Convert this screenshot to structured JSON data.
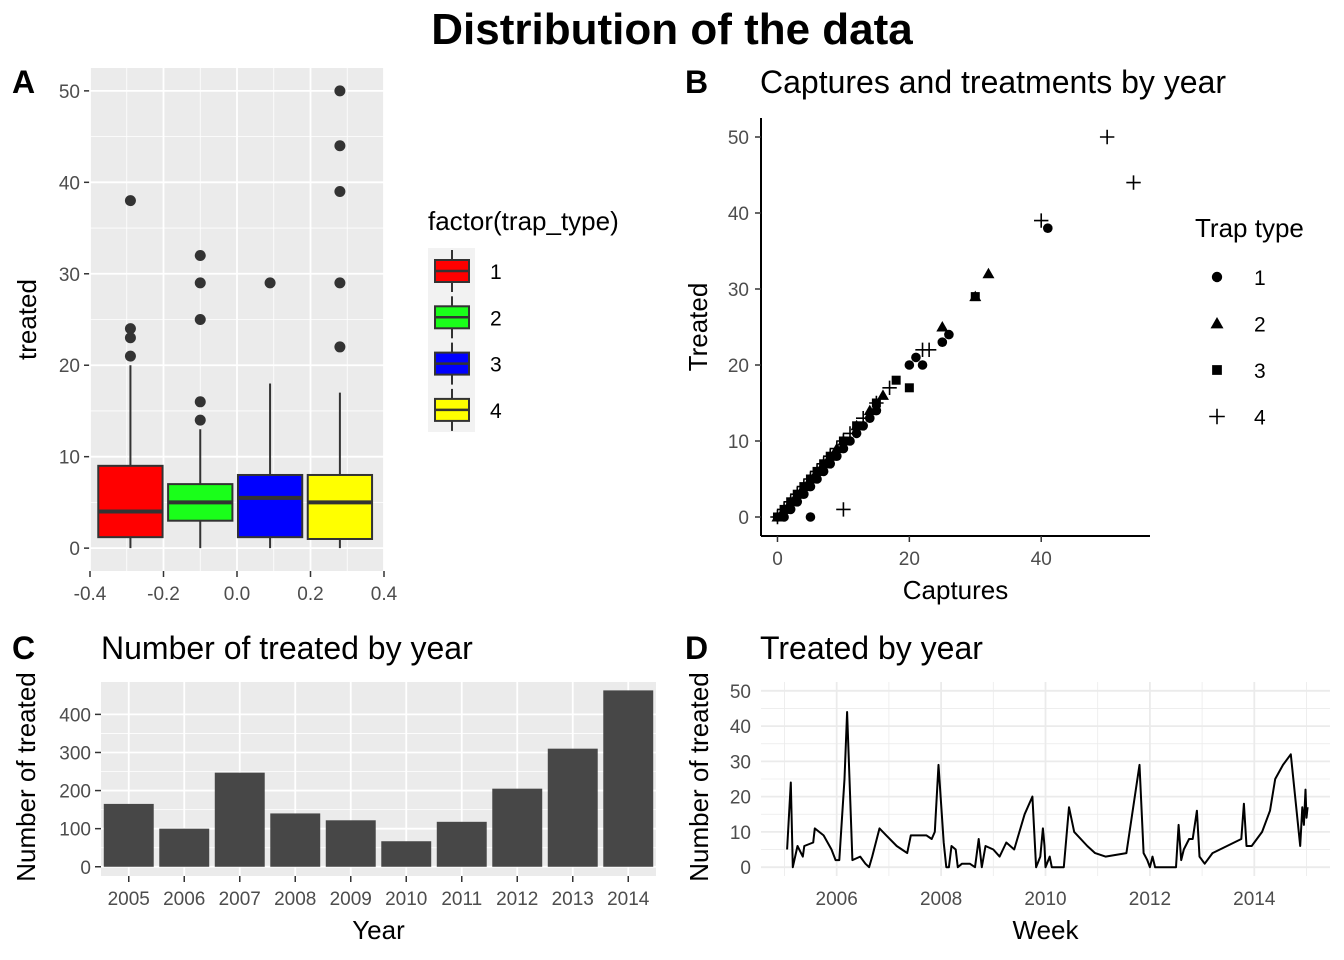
{
  "title": "Distribution of the data",
  "colors": {
    "panel_bg": "#EBEBEB",
    "grid": "#FFFFFF",
    "grid_light": "#EBEBEB",
    "bar": "#474747",
    "box_fill": [
      "#FF0000",
      "#1AFF1A",
      "#0000FF",
      "#FFFF00"
    ]
  },
  "chart_data": [
    {
      "id": "A",
      "type": "box",
      "tag": "A",
      "title": "",
      "xlabel": "",
      "ylabel": "treated",
      "xlim": [
        -0.4,
        0.4
      ],
      "ylim": [
        0,
        50
      ],
      "x_ticks": [
        -0.4,
        -0.2,
        0.0,
        0.2,
        0.4
      ],
      "x_tick_labels": [
        "-0.4",
        "-0.2",
        "0.0",
        "0.2",
        "0.4"
      ],
      "y_ticks": [
        0,
        10,
        20,
        30,
        40,
        50
      ],
      "y_tick_labels": [
        "0",
        "10",
        "20",
        "30",
        "40",
        "50"
      ],
      "legend": {
        "title": "factor(trap_type)",
        "labels": [
          "1",
          "2",
          "3",
          "4"
        ],
        "position": "right"
      },
      "boxes": [
        {
          "group": "1",
          "x_min": -0.3775,
          "x_max": -0.2025,
          "q1": 1.2,
          "median": 4,
          "q3": 9,
          "whisker_low": 0,
          "whisker_high": 20,
          "outliers": [
            21,
            23,
            24,
            38
          ]
        },
        {
          "group": "2",
          "x_min": -0.1875,
          "x_max": -0.0125,
          "q1": 3,
          "median": 5,
          "q3": 7,
          "whisker_low": 0,
          "whisker_high": 13,
          "outliers": [
            14,
            16,
            25,
            29,
            32
          ]
        },
        {
          "group": "3",
          "x_min": 0.0025,
          "x_max": 0.1775,
          "q1": 1.2,
          "median": 5.5,
          "q3": 8,
          "whisker_low": 0,
          "whisker_high": 18,
          "outliers": [
            29
          ]
        },
        {
          "group": "4",
          "x_min": 0.1925,
          "x_max": 0.3675,
          "q1": 1,
          "median": 5,
          "q3": 8,
          "whisker_low": 0,
          "whisker_high": 17,
          "outliers": [
            22,
            29,
            39,
            44,
            50
          ]
        }
      ]
    },
    {
      "id": "B",
      "type": "scatter",
      "tag": "B",
      "title": "Captures and treatments by year",
      "xlabel": "Captures",
      "ylabel": "Treated",
      "xlim": [
        -2.5,
        56.5
      ],
      "ylim": [
        -2.5,
        52.5
      ],
      "x_ticks": [
        0,
        20,
        40
      ],
      "x_tick_labels": [
        "0",
        "20",
        "40"
      ],
      "y_ticks": [
        0,
        10,
        20,
        30,
        40,
        50
      ],
      "y_tick_labels": [
        "0",
        "10",
        "20",
        "30",
        "40",
        "50"
      ],
      "legend": {
        "title": "Trap type",
        "labels": [
          "1",
          "2",
          "3",
          "4"
        ],
        "shapes": [
          "circle",
          "triangle",
          "square",
          "plus"
        ],
        "position": "right"
      },
      "series": [
        {
          "name": "1",
          "shape": "circle",
          "points": [
            [
              0,
              0
            ],
            [
              1,
              0
            ],
            [
              2,
              1
            ],
            [
              3,
              2
            ],
            [
              4,
              3
            ],
            [
              5,
              0
            ],
            [
              5,
              4
            ],
            [
              6,
              5
            ],
            [
              7,
              6
            ],
            [
              8,
              7
            ],
            [
              9,
              8
            ],
            [
              10,
              9
            ],
            [
              11,
              10
            ],
            [
              12,
              11
            ],
            [
              13,
              12
            ],
            [
              14,
              13
            ],
            [
              15,
              14
            ],
            [
              20,
              20
            ],
            [
              21,
              21
            ],
            [
              22,
              20
            ],
            [
              25,
              23
            ],
            [
              26,
              24
            ],
            [
              41,
              38
            ]
          ]
        },
        {
          "name": "2",
          "shape": "triangle",
          "points": [
            [
              0,
              0
            ],
            [
              1,
              1
            ],
            [
              2,
              2
            ],
            [
              3,
              3
            ],
            [
              4,
              4
            ],
            [
              5,
              5
            ],
            [
              6,
              6
            ],
            [
              7,
              7
            ],
            [
              8,
              8
            ],
            [
              9,
              9
            ],
            [
              10,
              10
            ],
            [
              12,
              12
            ],
            [
              14,
              14
            ],
            [
              16,
              16
            ],
            [
              25,
              25
            ],
            [
              30,
              29
            ],
            [
              32,
              32
            ]
          ]
        },
        {
          "name": "3",
          "shape": "square",
          "points": [
            [
              0,
              0
            ],
            [
              1,
              1
            ],
            [
              2,
              2
            ],
            [
              3,
              3
            ],
            [
              4,
              4
            ],
            [
              5,
              5
            ],
            [
              6,
              6
            ],
            [
              7,
              7
            ],
            [
              8,
              8
            ],
            [
              10,
              10
            ],
            [
              12,
              12
            ],
            [
              15,
              15
            ],
            [
              18,
              18
            ],
            [
              20,
              17
            ],
            [
              30,
              29
            ]
          ]
        },
        {
          "name": "4",
          "shape": "plus",
          "points": [
            [
              0,
              0
            ],
            [
              1,
              1
            ],
            [
              2,
              2
            ],
            [
              3,
              3
            ],
            [
              4,
              4
            ],
            [
              5,
              5
            ],
            [
              6,
              6
            ],
            [
              7,
              7
            ],
            [
              8,
              8
            ],
            [
              9,
              9
            ],
            [
              10,
              1
            ],
            [
              10,
              10
            ],
            [
              11,
              11
            ],
            [
              13,
              13
            ],
            [
              15,
              15
            ],
            [
              17,
              17
            ],
            [
              22,
              22
            ],
            [
              23,
              22
            ],
            [
              40,
              39
            ],
            [
              50,
              50
            ],
            [
              54,
              44
            ]
          ]
        }
      ]
    },
    {
      "id": "C",
      "type": "bar",
      "tag": "C",
      "title": "Number of treated by year",
      "xlabel": "Year",
      "ylabel": "Number of treated",
      "ylim": [
        0,
        485
      ],
      "y_ticks": [
        0,
        100,
        200,
        300,
        400
      ],
      "y_tick_labels": [
        "0",
        "100",
        "200",
        "300",
        "400"
      ],
      "categories": [
        "2005",
        "2006",
        "2007",
        "2008",
        "2009",
        "2010",
        "2011",
        "2012",
        "2013",
        "2014"
      ],
      "values": [
        165,
        100,
        247,
        140,
        122,
        67,
        118,
        205,
        310,
        463
      ]
    },
    {
      "id": "D",
      "type": "line",
      "tag": "D",
      "title": "Treated by year",
      "xlabel": "Week",
      "ylabel": "Number of treated",
      "xlim": [
        2004.55,
        2015.45
      ],
      "ylim": [
        -2.5,
        52.5
      ],
      "x_ticks": [
        2006,
        2008,
        2010,
        2012,
        2014
      ],
      "x_tick_labels": [
        "2006",
        "2008",
        "2010",
        "2012",
        "2014"
      ],
      "y_ticks": [
        0,
        10,
        20,
        30,
        40,
        50
      ],
      "y_tick_labels": [
        "0",
        "10",
        "20",
        "30",
        "40",
        "50"
      ],
      "points": [
        [
          2005.05,
          5
        ],
        [
          2005.12,
          24
        ],
        [
          2005.16,
          0
        ],
        [
          2005.25,
          6
        ],
        [
          2005.35,
          3
        ],
        [
          2005.38,
          6
        ],
        [
          2005.55,
          7
        ],
        [
          2005.58,
          11
        ],
        [
          2005.75,
          9
        ],
        [
          2005.9,
          5
        ],
        [
          2005.98,
          2
        ],
        [
          2006.05,
          2
        ],
        [
          2006.15,
          25
        ],
        [
          2006.2,
          44
        ],
        [
          2006.3,
          2
        ],
        [
          2006.45,
          3
        ],
        [
          2006.55,
          1
        ],
        [
          2006.62,
          0
        ],
        [
          2006.68,
          3
        ],
        [
          2006.82,
          11
        ],
        [
          2006.95,
          9
        ],
        [
          2007.15,
          6
        ],
        [
          2007.25,
          5
        ],
        [
          2007.35,
          4
        ],
        [
          2007.42,
          9
        ],
        [
          2007.55,
          9
        ],
        [
          2007.72,
          9
        ],
        [
          2007.82,
          8
        ],
        [
          2007.88,
          10
        ],
        [
          2007.95,
          29
        ],
        [
          2008.05,
          7
        ],
        [
          2008.1,
          0
        ],
        [
          2008.15,
          0
        ],
        [
          2008.2,
          6
        ],
        [
          2008.28,
          5
        ],
        [
          2008.32,
          0
        ],
        [
          2008.4,
          1
        ],
        [
          2008.55,
          1
        ],
        [
          2008.65,
          0
        ],
        [
          2008.72,
          8
        ],
        [
          2008.78,
          0
        ],
        [
          2008.85,
          6
        ],
        [
          2009.0,
          5
        ],
        [
          2009.12,
          3
        ],
        [
          2009.25,
          7
        ],
        [
          2009.4,
          5
        ],
        [
          2009.6,
          15
        ],
        [
          2009.75,
          20
        ],
        [
          2009.82,
          0
        ],
        [
          2009.9,
          3
        ],
        [
          2009.95,
          11
        ],
        [
          2009.98,
          6
        ],
        [
          2010.0,
          0
        ],
        [
          2010.08,
          3
        ],
        [
          2010.12,
          0
        ],
        [
          2010.2,
          0
        ],
        [
          2010.35,
          0
        ],
        [
          2010.45,
          17
        ],
        [
          2010.55,
          10
        ],
        [
          2010.8,
          6
        ],
        [
          2010.95,
          4
        ],
        [
          2011.15,
          3
        ],
        [
          2011.55,
          4
        ],
        [
          2011.8,
          29
        ],
        [
          2011.88,
          4
        ],
        [
          2011.95,
          2
        ],
        [
          2012.0,
          0
        ],
        [
          2012.05,
          3
        ],
        [
          2012.1,
          0
        ],
        [
          2012.28,
          0
        ],
        [
          2012.5,
          0
        ],
        [
          2012.55,
          12
        ],
        [
          2012.6,
          2
        ],
        [
          2012.65,
          5
        ],
        [
          2012.75,
          8
        ],
        [
          2012.82,
          8
        ],
        [
          2012.9,
          16
        ],
        [
          2012.95,
          3
        ],
        [
          2013.05,
          1
        ],
        [
          2013.2,
          4
        ],
        [
          2013.75,
          8
        ],
        [
          2013.8,
          18
        ],
        [
          2013.85,
          6
        ],
        [
          2013.95,
          6
        ],
        [
          2014.15,
          10
        ],
        [
          2014.3,
          16
        ],
        [
          2014.4,
          25
        ],
        [
          2014.55,
          29
        ],
        [
          2014.7,
          32
        ],
        [
          2014.88,
          6
        ],
        [
          2014.92,
          17
        ],
        [
          2014.95,
          12
        ],
        [
          2014.98,
          22
        ],
        [
          2015.0,
          14
        ],
        [
          2015.02,
          17
        ]
      ]
    }
  ]
}
